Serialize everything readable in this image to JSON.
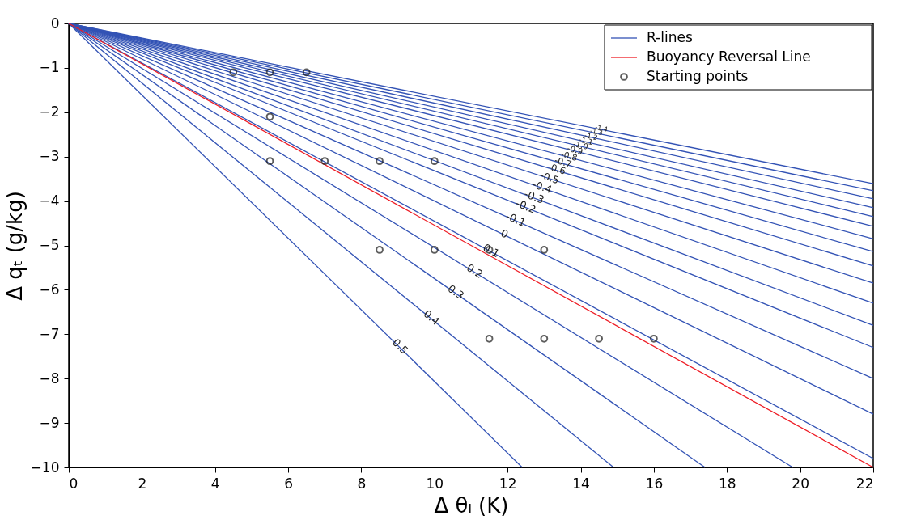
{
  "chart_data": {
    "type": "line",
    "xlabel": "Δ θₗ (K)",
    "ylabel": "Δ qₜ (g/kg)",
    "xlim": [
      0,
      22
    ],
    "ylim": [
      -10,
      0
    ],
    "xticks": [
      0,
      2,
      4,
      6,
      8,
      10,
      12,
      14,
      16,
      18,
      20,
      22
    ],
    "yticks": [
      0,
      -1,
      -2,
      -3,
      -4,
      -5,
      -6,
      -7,
      -8,
      -9,
      -10
    ],
    "grid": false,
    "legend": "top right",
    "line_style": "solid",
    "series": [
      {
        "name": "R-lines",
        "color": "#3353b5",
        "x": [
          0,
          12.4
        ],
        "values": [
          0,
          -10
        ]
      },
      {
        "color": "#3353b5",
        "x": [
          0,
          14.9
        ],
        "values": [
          0,
          -10
        ]
      },
      {
        "color": "#3353b5",
        "x": [
          0,
          17.4
        ],
        "values": [
          0,
          -10
        ]
      },
      {
        "color": "#3353b5",
        "x": [
          0,
          19.8
        ],
        "values": [
          0,
          -10
        ]
      },
      {
        "color": "#3353b5",
        "x": [
          0,
          22
        ],
        "values": [
          0,
          -9.8
        ]
      },
      {
        "color": "#3353b5",
        "x": [
          0,
          22
        ],
        "values": [
          0,
          -8.8
        ]
      },
      {
        "color": "#3353b5",
        "x": [
          0,
          22
        ],
        "values": [
          0,
          -8.0
        ]
      },
      {
        "color": "#3353b5",
        "x": [
          0,
          22
        ],
        "values": [
          0,
          -7.3
        ]
      },
      {
        "color": "#3353b5",
        "x": [
          0,
          22
        ],
        "values": [
          0,
          -6.8
        ]
      },
      {
        "color": "#3353b5",
        "x": [
          0,
          22
        ],
        "values": [
          0,
          -6.3
        ]
      },
      {
        "color": "#3353b5",
        "x": [
          0,
          22
        ],
        "values": [
          0,
          -5.85
        ]
      },
      {
        "color": "#3353b5",
        "x": [
          0,
          22
        ],
        "values": [
          0,
          -5.46
        ]
      },
      {
        "color": "#3353b5",
        "x": [
          0,
          22
        ],
        "values": [
          0,
          -5.14
        ]
      },
      {
        "color": "#3353b5",
        "x": [
          0,
          22
        ],
        "values": [
          0,
          -4.85
        ]
      },
      {
        "color": "#3353b5",
        "x": [
          0,
          22
        ],
        "values": [
          0,
          -4.57
        ]
      },
      {
        "color": "#3353b5",
        "x": [
          0,
          22
        ],
        "values": [
          0,
          -4.35
        ]
      },
      {
        "color": "#3353b5",
        "x": [
          0,
          22
        ],
        "values": [
          0,
          -4.15
        ]
      },
      {
        "color": "#3353b5",
        "x": [
          0,
          22
        ],
        "values": [
          0,
          -3.95
        ]
      },
      {
        "color": "#3353b5",
        "x": [
          0,
          22
        ],
        "values": [
          0,
          -3.77
        ]
      },
      {
        "color": "#3353b5",
        "x": [
          0,
          22
        ],
        "values": [
          0,
          -3.61
        ]
      },
      {
        "name": "Buoyancy Reversal Line",
        "color": "#ee1c25",
        "x": [
          0,
          22
        ],
        "values": [
          0,
          -10
        ]
      },
      {
        "name": "Starting points",
        "type": "scatter",
        "marker": "circle",
        "color": "#1a1a1a",
        "x": [
          4.5,
          5.5,
          6.5,
          5.5,
          5.5,
          7,
          8.5,
          10,
          8.5,
          10,
          11.5,
          13,
          11.5,
          13,
          14.5,
          16
        ],
        "values": [
          -1.1,
          -1.1,
          -1.1,
          -2.1,
          -3.1,
          -3.1,
          -3.1,
          -3.1,
          -5.1,
          -5.1,
          -5.1,
          -5.1,
          -7.1,
          -7.1,
          -7.1,
          -7.1
        ]
      }
    ],
    "annotations": [
      "0.5",
      "0.4",
      "0.3",
      "0.2",
      "0.1",
      "0",
      "-0.1",
      "-0.2",
      "-0.3",
      "-0.4",
      "-0.5",
      "-0.6",
      "-0.7",
      "-0.8",
      "-0.9",
      "-1.0",
      "-1.1",
      "-1.2",
      "-1.3",
      "-1.4"
    ]
  }
}
